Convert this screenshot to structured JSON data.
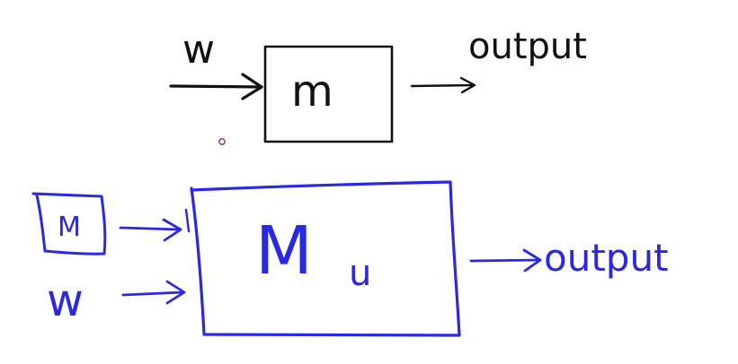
{
  "colors": {
    "top_ink": "#111111",
    "bottom_ink": "#2828e6",
    "stray_dot": "#8a2a6a",
    "background": "#ffffff"
  },
  "top_diagram": {
    "input_label": "w",
    "box_label": "m",
    "output_label": "output"
  },
  "bottom_diagram": {
    "input_box_label": "M",
    "input_label": "w",
    "box_label": "M",
    "box_subscript": "u",
    "output_label": "output"
  }
}
